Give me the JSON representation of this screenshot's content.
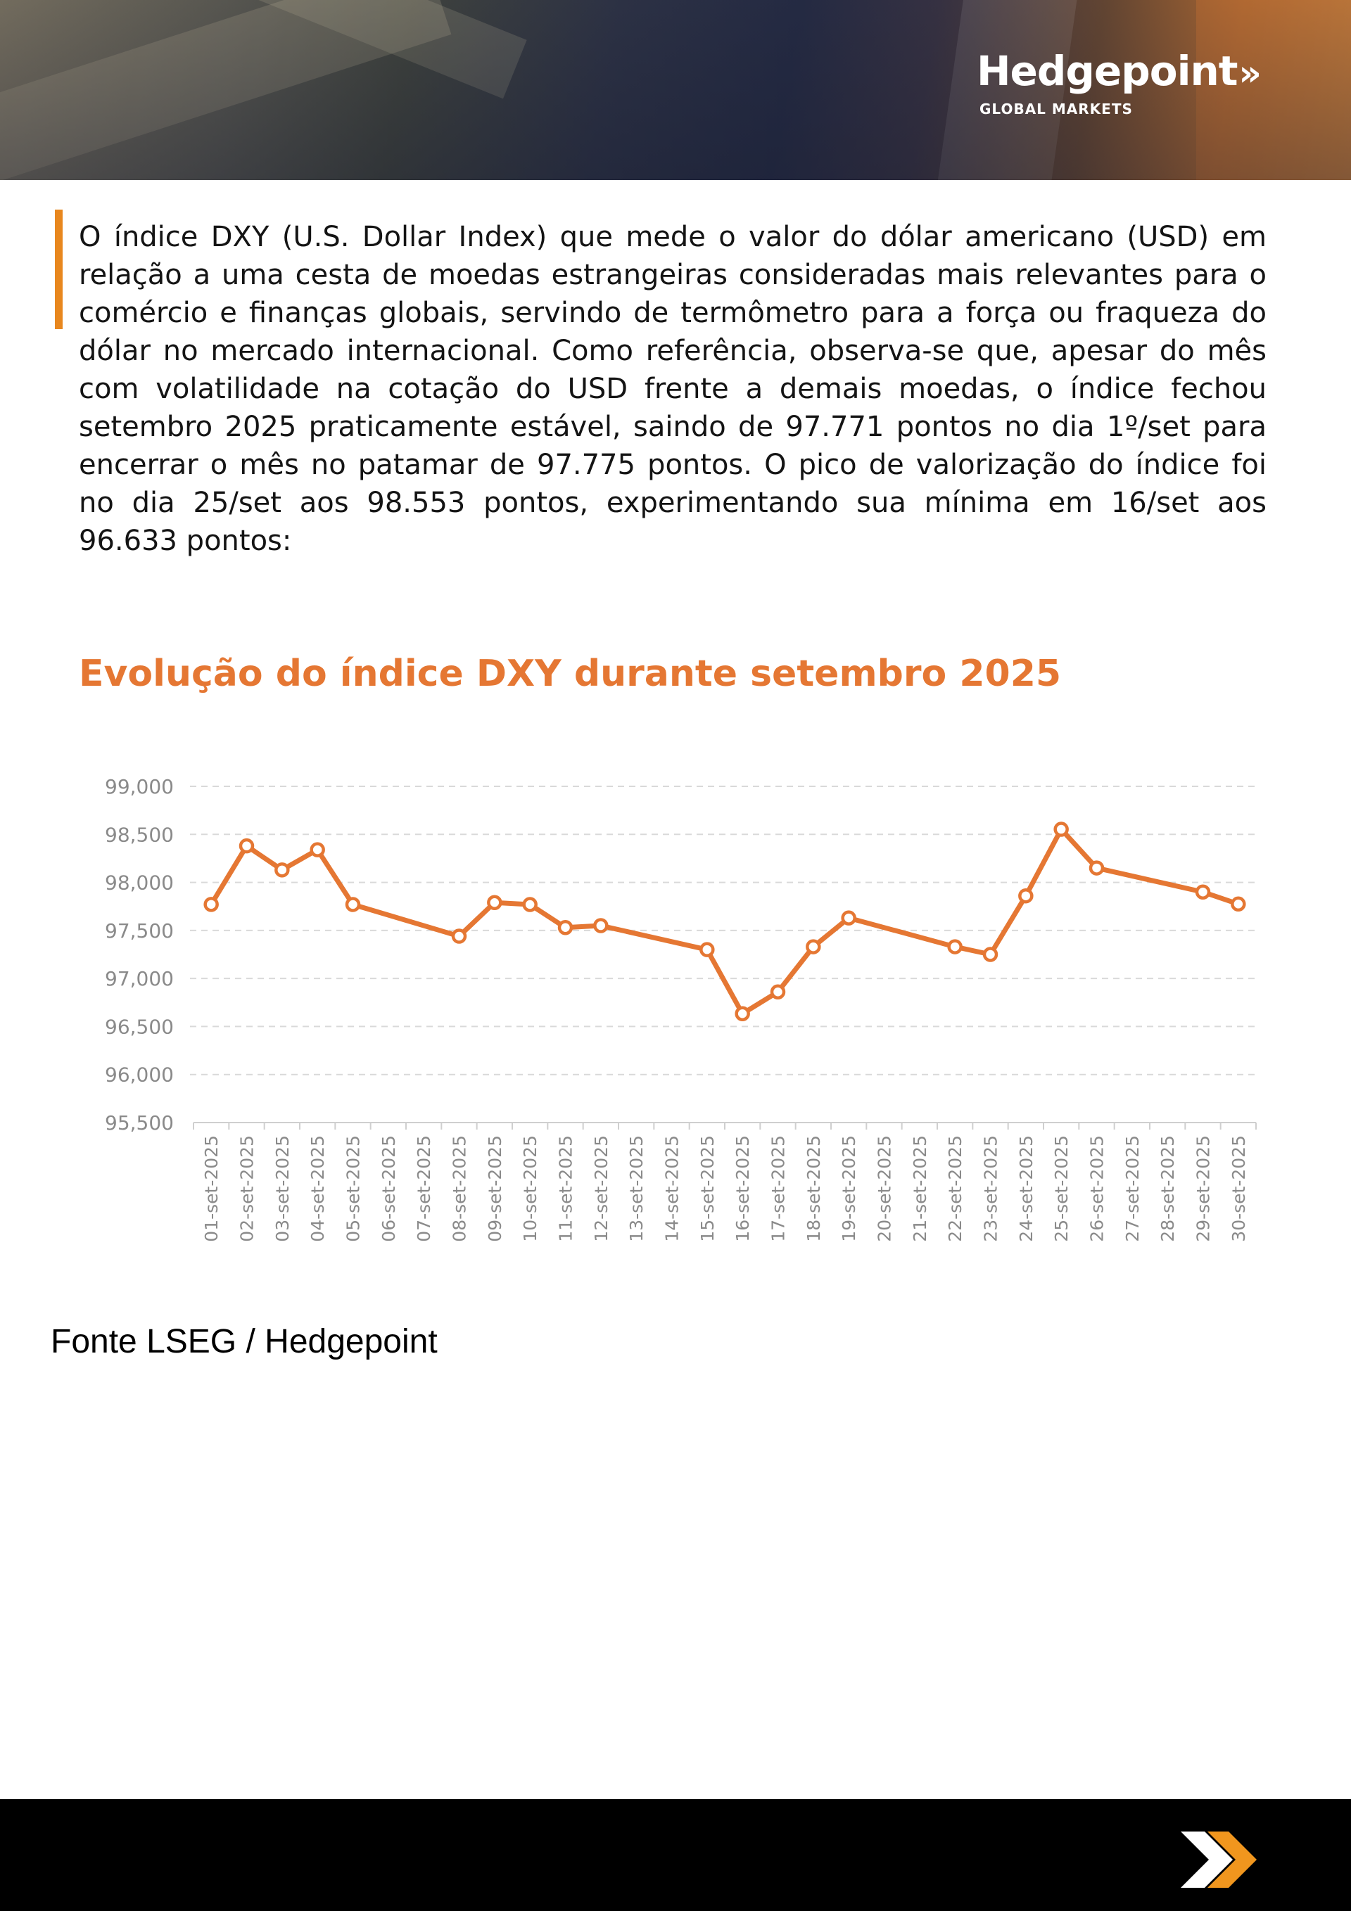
{
  "brand": {
    "name": "Hedgepoint",
    "chevron": "»",
    "subtitle": "GLOBAL MARKETS"
  },
  "intro_text": "O índice DXY (U.S. Dollar Index) que mede o valor do dólar americano (USD) em relação a uma cesta de moedas estrangeiras consideradas mais relevantes para o comércio e finanças globais, servindo de termômetro para a força ou fraqueza do dólar no mercado internacional. Como referência, observa-se que, apesar do mês com volatilidade na cotação do USD frente a demais moedas, o índice fechou setembro 2025 praticamente estável, saindo de 97.771 pontos no dia 1º/set para encerrar o mês no patamar de 97.775 pontos. O pico de valorização do índice foi no dia 25/set aos 98.553 pontos, experimentando sua mínima em 16/set aos 96.633 pontos:",
  "colors": {
    "accent_bar": "#e8871e",
    "title": "#e57733",
    "line": "#e57733",
    "grid": "#d9d9d9",
    "tick": "#8a8a8a"
  },
  "chart_data": {
    "type": "line",
    "title": "Evolução do índice DXY durante setembro 2025",
    "xlabel": "",
    "ylabel": "",
    "ylim": [
      95500,
      99000
    ],
    "y_ticks": [
      "95,500",
      "96,000",
      "96,500",
      "97,000",
      "97,500",
      "98,000",
      "98,500",
      "99,000"
    ],
    "y_tick_values": [
      95500,
      96000,
      96500,
      97000,
      97500,
      98000,
      98500,
      99000
    ],
    "grid": "horizontal-dashed",
    "legend": "none",
    "categories": [
      "01-set-2025",
      "02-set-2025",
      "03-set-2025",
      "04-set-2025",
      "05-set-2025",
      "06-set-2025",
      "07-set-2025",
      "08-set-2025",
      "09-set-2025",
      "10-set-2025",
      "11-set-2025",
      "12-set-2025",
      "13-set-2025",
      "14-set-2025",
      "15-set-2025",
      "16-set-2025",
      "17-set-2025",
      "18-set-2025",
      "19-set-2025",
      "20-set-2025",
      "21-set-2025",
      "22-set-2025",
      "23-set-2025",
      "24-set-2025",
      "25-set-2025",
      "26-set-2025",
      "27-set-2025",
      "28-set-2025",
      "29-set-2025",
      "30-set-2025"
    ],
    "series": [
      {
        "values": [
          97771,
          98380,
          98130,
          98340,
          97770,
          null,
          null,
          97440,
          97790,
          97770,
          97530,
          97550,
          null,
          null,
          97300,
          96633,
          96860,
          97330,
          97630,
          null,
          null,
          97330,
          97250,
          97860,
          98553,
          98150,
          null,
          null,
          97900,
          97775
        ]
      }
    ]
  },
  "source": "Fonte LSEG / Hedgepoint"
}
